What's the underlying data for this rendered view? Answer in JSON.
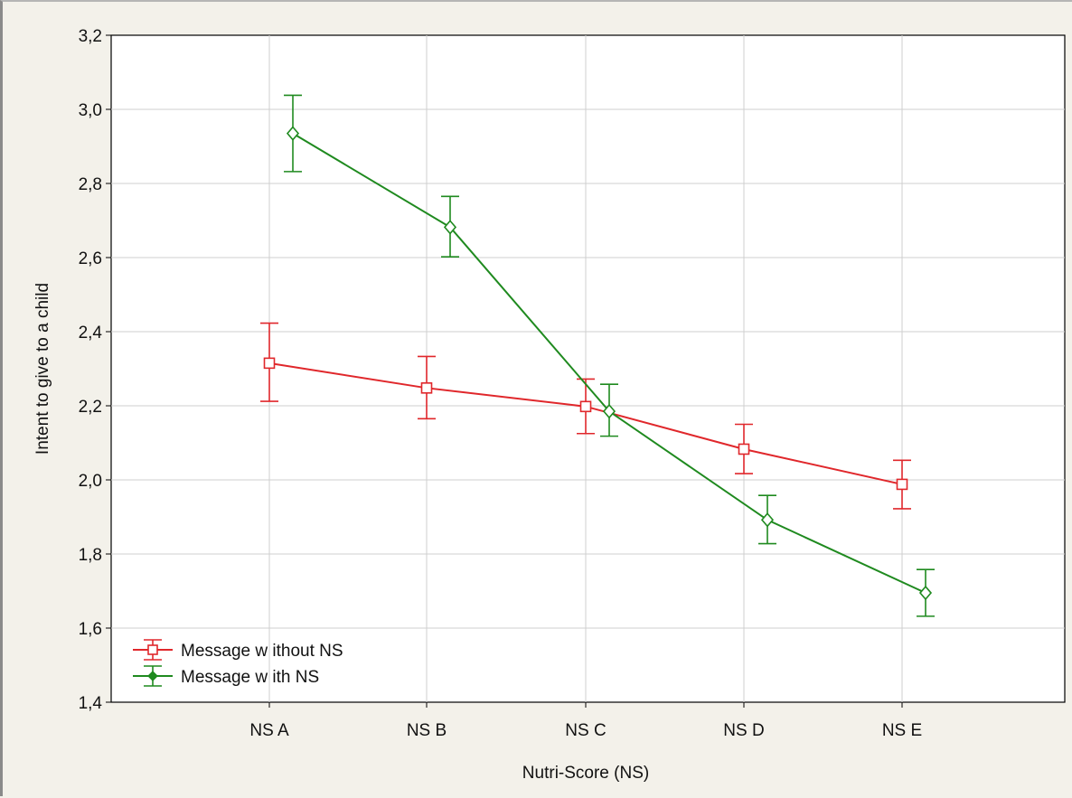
{
  "chart_data": {
    "type": "line",
    "xlabel": "Nutri-Score (NS)",
    "ylabel": "Intent to give to a child",
    "categories": [
      "NS A",
      "NS B",
      "NS C",
      "NS D",
      "NS E"
    ],
    "ylim": [
      1.4,
      3.2
    ],
    "yticks": [
      "1,4",
      "1,6",
      "1,8",
      "2,0",
      "2,2",
      "2,4",
      "2,6",
      "2,8",
      "3,0",
      "3,2"
    ],
    "grid": true,
    "legend_position": "bottom-left",
    "series": [
      {
        "name": "Message w ithout NS",
        "color": "#e0272b",
        "marker": "square",
        "values": [
          2.315,
          2.248,
          2.198,
          2.083,
          1.988
        ],
        "err_low": [
          2.212,
          2.165,
          2.125,
          2.017,
          1.922
        ],
        "err_high": [
          2.423,
          2.333,
          2.272,
          2.15,
          2.053
        ]
      },
      {
        "name": "Message w ith NS",
        "color": "#1f8a1f",
        "marker": "diamond",
        "values": [
          2.935,
          2.682,
          2.185,
          1.892,
          1.695
        ],
        "err_low": [
          2.832,
          2.602,
          2.118,
          1.828,
          1.632
        ],
        "err_high": [
          3.038,
          2.765,
          2.258,
          1.958,
          1.758
        ]
      }
    ]
  }
}
